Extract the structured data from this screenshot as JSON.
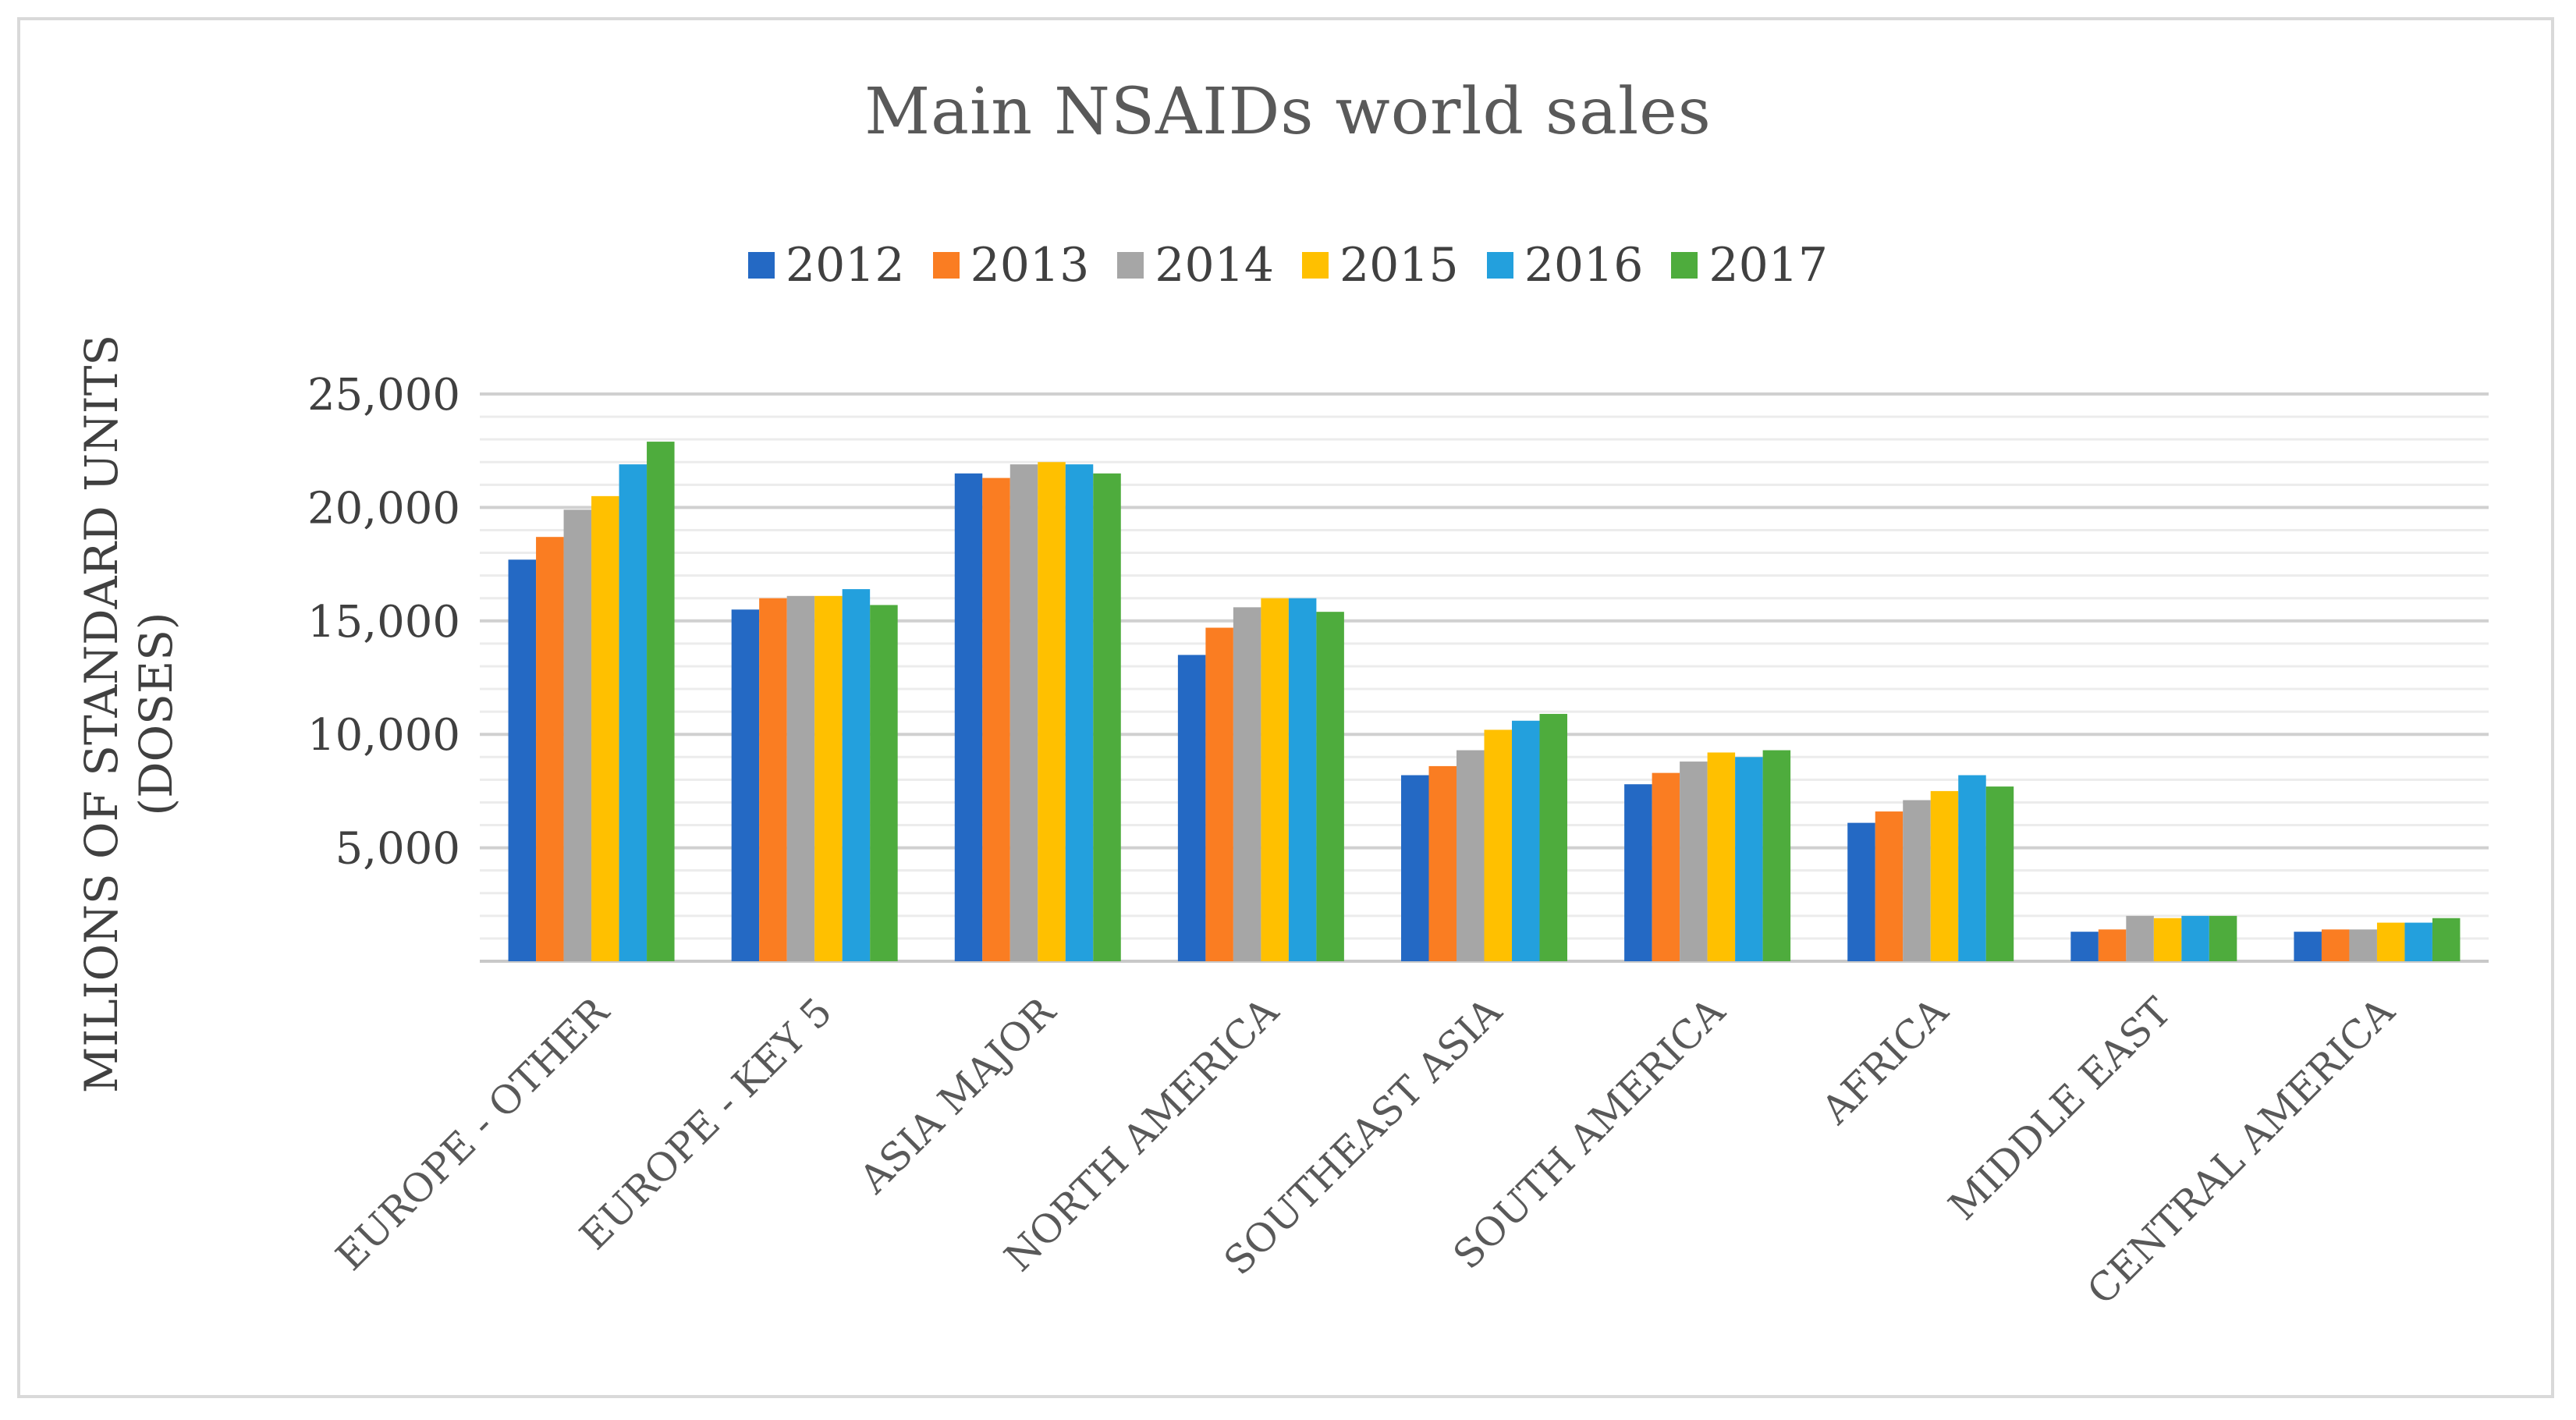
{
  "chart_data": {
    "type": "bar",
    "title": "Main NSAIDs world  sales",
    "xlabel": "",
    "ylabel": "MILIONS OF STANDARD UNITS (DOSES)",
    "ylabel_lines": [
      "MILIONS OF STANDARD UNITS",
      "(DOSES)"
    ],
    "ylim": [
      0,
      25000
    ],
    "yticks": [
      5000,
      10000,
      15000,
      20000,
      25000
    ],
    "ytick_labels": [
      "5,000",
      "10,000",
      "15,000",
      "20,000",
      "25,000"
    ],
    "grid": true,
    "legend_position": "top",
    "categories": [
      "EUROPE - OTHER",
      "EUROPE - KEY 5",
      "ASIA MAJOR",
      "NORTH AMERICA",
      "SOUTHEAST ASIA",
      "SOUTH AMERICA",
      "AFRICA",
      "MIDDLE EAST",
      "CENTRAL AMERICA"
    ],
    "series": [
      {
        "name": "2012",
        "color": "#2469c4",
        "values": [
          17700,
          15500,
          21500,
          13500,
          8200,
          7800,
          6100,
          1300,
          1300
        ]
      },
      {
        "name": "2013",
        "color": "#fa7d22",
        "values": [
          18700,
          16000,
          21300,
          14700,
          8600,
          8300,
          6600,
          1400,
          1400
        ]
      },
      {
        "name": "2014",
        "color": "#a6a6a6",
        "values": [
          19900,
          16100,
          21900,
          15600,
          9300,
          8800,
          7100,
          2000,
          1400
        ]
      },
      {
        "name": "2015",
        "color": "#ffc000",
        "values": [
          20500,
          16100,
          22000,
          16000,
          10200,
          9200,
          7500,
          1900,
          1700
        ]
      },
      {
        "name": "2016",
        "color": "#23a0dd",
        "values": [
          21900,
          16400,
          21900,
          16000,
          10600,
          9000,
          8200,
          2000,
          1700
        ]
      },
      {
        "name": "2017",
        "color": "#4eac3d",
        "values": [
          22900,
          15700,
          21500,
          15400,
          10900,
          9300,
          7700,
          2000,
          1900
        ]
      }
    ]
  }
}
